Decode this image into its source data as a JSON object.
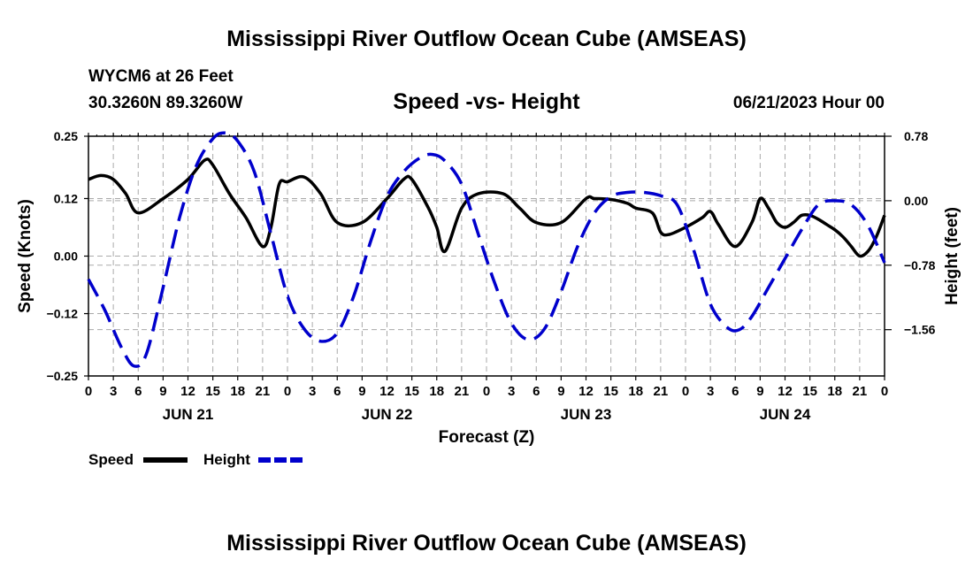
{
  "page": {
    "title": "Mississippi River Outflow Ocean Cube (AMSEAS)",
    "bottom_title": "Mississippi River Outflow Ocean Cube (AMSEAS)",
    "station": "WYCM6 at 26 Feet",
    "coords": "30.3260N  89.3260W",
    "subtitle": "Speed -vs- Height",
    "datetime": "06/21/2023 Hour 00"
  },
  "colors": {
    "speed": "#000000",
    "height": "#0000cc",
    "grid": "#aaaaaa"
  },
  "chart_data": {
    "type": "line",
    "title": "Speed -vs- Height",
    "xlabel": "Forecast (Z)",
    "ylabel": "Speed (Knots)",
    "y2label": "Height (feet)",
    "xlim": [
      0,
      96
    ],
    "ylim": [
      -0.25,
      0.25
    ],
    "y2lim": [
      -2.12,
      0.78
    ],
    "yticks": [
      -0.25,
      -0.12,
      0.0,
      0.12,
      0.25
    ],
    "yticklabels": [
      "−0.25",
      "−0.12",
      "0.00",
      "0.12",
      "0.25"
    ],
    "y2ticks": [
      0.78,
      0.0,
      -0.78,
      -1.56
    ],
    "y2ticklabels": [
      "0.78",
      "0.00",
      "−0.78",
      "−1.56"
    ],
    "xticks": [
      0,
      3,
      6,
      9,
      12,
      15,
      18,
      21,
      24,
      27,
      30,
      33,
      36,
      39,
      42,
      45,
      48,
      51,
      54,
      57,
      60,
      63,
      66,
      69,
      72,
      75,
      78,
      81,
      84,
      87,
      90,
      93,
      96
    ],
    "xticklabels": [
      "0",
      "3",
      "6",
      "9",
      "12",
      "15",
      "18",
      "21",
      "0",
      "3",
      "6",
      "9",
      "12",
      "15",
      "18",
      "21",
      "0",
      "3",
      "6",
      "9",
      "12",
      "15",
      "18",
      "21",
      "0",
      "3",
      "6",
      "9",
      "12",
      "15",
      "18",
      "21",
      "0"
    ],
    "day_labels": [
      {
        "x": 12,
        "label": "JUN 21"
      },
      {
        "x": 36,
        "label": "JUN 22"
      },
      {
        "x": 60,
        "label": "JUN 23"
      },
      {
        "x": 84,
        "label": "JUN 24"
      }
    ],
    "legend": [
      {
        "name": "Speed",
        "style": "solid"
      },
      {
        "name": "Height",
        "style": "dashed"
      }
    ],
    "series": [
      {
        "name": "Speed",
        "axis": "left",
        "style": "solid",
        "x": [
          0,
          1.5,
          3,
          4.5,
          6,
          9,
          12,
          14,
          15,
          17,
          19,
          21,
          22,
          23,
          24,
          26,
          28,
          30,
          33,
          36,
          38,
          39,
          41,
          42,
          43,
          45,
          47,
          50,
          52,
          54,
          57,
          60,
          61,
          63,
          65,
          66,
          68,
          69,
          70,
          72,
          74,
          75,
          76,
          78,
          80,
          81,
          82,
          83,
          84,
          85,
          86,
          87,
          88,
          89,
          90,
          91,
          92,
          93,
          94,
          95,
          96
        ],
        "values": [
          0.16,
          0.168,
          0.16,
          0.13,
          0.09,
          0.12,
          0.16,
          0.2,
          0.19,
          0.13,
          0.08,
          0.02,
          0.06,
          0.15,
          0.155,
          0.165,
          0.13,
          0.07,
          0.07,
          0.12,
          0.16,
          0.16,
          0.1,
          0.06,
          0.01,
          0.1,
          0.13,
          0.13,
          0.1,
          0.07,
          0.07,
          0.12,
          0.12,
          0.118,
          0.11,
          0.1,
          0.09,
          0.05,
          0.045,
          0.06,
          0.08,
          0.093,
          0.065,
          0.02,
          0.07,
          0.12,
          0.1,
          0.07,
          0.06,
          0.07,
          0.085,
          0.085,
          0.077,
          0.066,
          0.055,
          0.04,
          0.02,
          0.0,
          0.01,
          0.04,
          0.085
        ]
      },
      {
        "name": "Height",
        "axis": "right",
        "style": "dashed",
        "x": [
          0,
          2,
          4,
          5.5,
          7,
          9,
          11,
          13,
          15,
          16.5,
          18,
          20,
          22,
          24,
          26,
          28,
          30,
          32,
          34,
          36,
          38,
          40,
          41.5,
          43,
          45,
          47,
          49,
          51,
          53,
          55,
          57,
          59,
          61,
          63,
          65,
          67,
          69,
          71,
          73,
          75,
          77,
          78.5,
          80,
          82,
          84,
          86,
          88,
          90,
          92,
          94,
          96
        ],
        "values": [
          -0.95,
          -1.33,
          -1.78,
          -2.0,
          -1.85,
          -1.05,
          -0.2,
          0.42,
          0.75,
          0.82,
          0.72,
          0.35,
          -0.4,
          -1.15,
          -1.55,
          -1.7,
          -1.6,
          -1.15,
          -0.5,
          0.05,
          0.35,
          0.52,
          0.56,
          0.48,
          0.2,
          -0.4,
          -1.0,
          -1.48,
          -1.68,
          -1.55,
          -1.1,
          -0.55,
          -0.15,
          0.05,
          0.1,
          0.1,
          0.06,
          -0.05,
          -0.6,
          -1.25,
          -1.53,
          -1.56,
          -1.4,
          -1.05,
          -0.7,
          -0.35,
          -0.05,
          0.0,
          -0.05,
          -0.3,
          -0.75
        ]
      }
    ]
  }
}
